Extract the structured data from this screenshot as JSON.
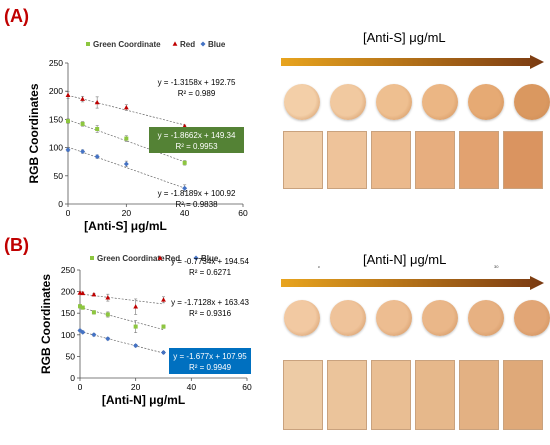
{
  "panels": [
    {
      "label": "(A)",
      "arrow_title": "[Anti-S] μg/mL"
    },
    {
      "label": "(B)",
      "arrow_title": "[Anti-N] μg/mL",
      "tiny_marks": [
        "c",
        "30"
      ]
    }
  ],
  "colors": {
    "label": "#c00000",
    "green": "#8dc63f",
    "red": "#c00000",
    "blue": "#4472c4",
    "highlight_green": "#548235",
    "highlight_blue": "#0070c0",
    "arrow_start": "#e8a41e",
    "arrow_end": "#7a3a12"
  },
  "chart_data": [
    {
      "type": "scatter",
      "xlabel": "[Anti-S] μg/mL",
      "ylabel": "RGB Coordinates",
      "xlim": [
        0,
        60
      ],
      "ylim": [
        0,
        250
      ],
      "xticks": [
        0,
        20,
        40,
        60
      ],
      "yticks": [
        0,
        50,
        100,
        150,
        200,
        250
      ],
      "grid": false,
      "legend_position": "top",
      "series": [
        {
          "name": "Green Coordinate",
          "color": "green",
          "marker": "square",
          "x": [
            0,
            5,
            10,
            20,
            40
          ],
          "y": [
            147,
            142,
            133,
            116,
            73
          ],
          "err": [
            4,
            4,
            6,
            5,
            4
          ],
          "fit": {
            "slope": -1.8662,
            "intercept": 149.34
          },
          "equation": "y = -1.8662x + 149.34",
          "r2": "R² = 0.9953",
          "highlight": "highlight_green"
        },
        {
          "name": "Red",
          "color": "red",
          "marker": "triangle",
          "x": [
            0,
            5,
            10,
            20,
            40
          ],
          "y": [
            193,
            186,
            180,
            171,
            138
          ],
          "err": [
            6,
            5,
            10,
            5,
            2
          ],
          "fit": {
            "slope": -1.3158,
            "intercept": 192.75
          },
          "equation": "y = -1.3158x + 192.75",
          "r2": "R² = 0.989",
          "highlight": ""
        },
        {
          "name": "Blue",
          "color": "blue",
          "marker": "diamond",
          "x": [
            0,
            5,
            10,
            20,
            40
          ],
          "y": [
            96,
            93,
            84,
            71,
            28
          ],
          "err": [
            3,
            3,
            3,
            5,
            6
          ],
          "fit": {
            "slope": -1.8189,
            "intercept": 100.92
          },
          "equation": "y = -1.8189x + 100.92",
          "r2": "R² = 0.9838",
          "highlight": ""
        }
      ]
    },
    {
      "type": "scatter",
      "xlabel": "[Anti-N] μg/mL",
      "ylabel": "RGB Coordinates",
      "xlim": [
        0,
        60
      ],
      "ylim": [
        0,
        250
      ],
      "xticks": [
        0,
        20,
        40,
        60
      ],
      "yticks": [
        0,
        50,
        100,
        150,
        200,
        250
      ],
      "grid": false,
      "legend_position": "top",
      "series": [
        {
          "name": "Green Coordinate",
          "color": "green",
          "marker": "square",
          "x": [
            0,
            1,
            5,
            10,
            20,
            30
          ],
          "y": [
            166,
            163,
            152,
            147,
            119,
            119
          ],
          "err": [
            4,
            4,
            4,
            6,
            14,
            4
          ],
          "fit": {
            "slope": -1.7128,
            "intercept": 163.43
          },
          "equation": "y = -1.7128x + 163.43",
          "r2": "R² = 0.9316",
          "highlight": ""
        },
        {
          "name": "Red",
          "color": "red",
          "marker": "triangle",
          "x": [
            0,
            1,
            5,
            10,
            20,
            30
          ],
          "y": [
            197,
            196,
            193,
            186,
            165,
            181
          ],
          "err": [
            3,
            3,
            3,
            8,
            18,
            7
          ],
          "fit": {
            "slope": -0.7734,
            "intercept": 194.54
          },
          "equation": "y = -0.7734x + 194.54",
          "r2": "R² = 0.6271",
          "highlight": ""
        },
        {
          "name": "Blue",
          "color": "blue",
          "marker": "diamond",
          "x": [
            0,
            1,
            5,
            10,
            20,
            30
          ],
          "y": [
            110,
            106,
            100,
            91,
            75,
            59
          ],
          "err": [
            3,
            3,
            3,
            3,
            3,
            3
          ],
          "fit": {
            "slope": -1.677,
            "intercept": 107.95
          },
          "equation": "y = -1.677x + 107.95",
          "r2": "R² = 0.9949",
          "highlight": "highlight_blue"
        }
      ]
    }
  ],
  "swatches": {
    "circles": [
      [
        "#f3cfa8",
        "#f1c9a0",
        "#eebf90",
        "#ebb684",
        "#e6aa74",
        "#da9860"
      ],
      [
        "#f2c9a2",
        "#efc39a",
        "#edbd91",
        "#eab789",
        "#e7b182",
        "#e2a676"
      ]
    ],
    "rects": [
      [
        "#f0cda8",
        "#eec39a",
        "#ebb98c",
        "#e7ae7f",
        "#e2a270",
        "#da9460"
      ],
      [
        "#edcba5",
        "#ebc49b",
        "#e9be93",
        "#e6b88b",
        "#e3b183",
        "#dfa979"
      ]
    ]
  }
}
